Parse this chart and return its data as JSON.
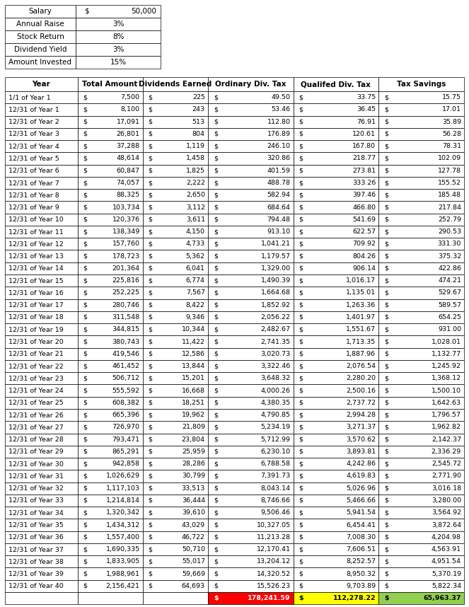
{
  "params": [
    [
      "Salary",
      "$",
      "50,000"
    ],
    [
      "Annual Raise",
      "3%",
      ""
    ],
    [
      "Stock Return",
      "8%",
      ""
    ],
    [
      "Dividend Yield",
      "3%",
      ""
    ],
    [
      "Amount Invested",
      "15%",
      ""
    ]
  ],
  "headers": [
    "Year",
    "Total Amount",
    "Dividends Earned",
    "Ordinary Div. Tax",
    "Qualifed Div. Tax",
    "Tax Savings"
  ],
  "rows": [
    [
      "1/1 of Year 1",
      "7,500",
      "225",
      "49.50",
      "33.75",
      "15.75"
    ],
    [
      "12/31 of Year 1",
      "8,100",
      "243",
      "53.46",
      "36.45",
      "17.01"
    ],
    [
      "12/31 of Year 2",
      "17,091",
      "513",
      "112.80",
      "76.91",
      "35.89"
    ],
    [
      "12/31 of Year 3",
      "26,801",
      "804",
      "176.89",
      "120.61",
      "56.28"
    ],
    [
      "12/31 of Year 4",
      "37,288",
      "1,119",
      "246.10",
      "167.80",
      "78.31"
    ],
    [
      "12/31 of Year 5",
      "48,614",
      "1,458",
      "320.86",
      "218.77",
      "102.09"
    ],
    [
      "12/31 of Year 6",
      "60,847",
      "1,825",
      "401.59",
      "273.81",
      "127.78"
    ],
    [
      "12/31 of Year 7",
      "74,057",
      "2,222",
      "488.78",
      "333.26",
      "155.52"
    ],
    [
      "12/31 of Year 8",
      "88,325",
      "2,650",
      "582.94",
      "397.46",
      "185.48"
    ],
    [
      "12/31 of Year 9",
      "103,734",
      "3,112",
      "684.64",
      "466.80",
      "217.84"
    ],
    [
      "12/31 of Year 10",
      "120,376",
      "3,611",
      "794.48",
      "541.69",
      "252.79"
    ],
    [
      "12/31 of Year 11",
      "138,349",
      "4,150",
      "913.10",
      "622.57",
      "290.53"
    ],
    [
      "12/31 of Year 12",
      "157,760",
      "4,733",
      "1,041.21",
      "709.92",
      "331.30"
    ],
    [
      "12/31 of Year 13",
      "178,723",
      "5,362",
      "1,179.57",
      "804.26",
      "375.32"
    ],
    [
      "12/31 of Year 14",
      "201,364",
      "6,041",
      "1,329.00",
      "906.14",
      "422.86"
    ],
    [
      "12/31 of Year 15",
      "225,816",
      "6,774",
      "1,490.39",
      "1,016.17",
      "474.21"
    ],
    [
      "12/31 of Year 16",
      "252,225",
      "7,567",
      "1,664.68",
      "1,135.01",
      "529.67"
    ],
    [
      "12/31 of Year 17",
      "280,746",
      "8,422",
      "1,852.92",
      "1,263.36",
      "589.57"
    ],
    [
      "12/31 of Year 18",
      "311,548",
      "9,346",
      "2,056.22",
      "1,401.97",
      "654.25"
    ],
    [
      "12/31 of Year 19",
      "344,815",
      "10,344",
      "2,482.67",
      "1,551.67",
      "931.00"
    ],
    [
      "12/31 of Year 20",
      "380,743",
      "11,422",
      "2,741.35",
      "1,713.35",
      "1,028.01"
    ],
    [
      "12/31 of Year 21",
      "419,546",
      "12,586",
      "3,020.73",
      "1,887.96",
      "1,132.77"
    ],
    [
      "12/31 of Year 22",
      "461,452",
      "13,844",
      "3,322.46",
      "2,076.54",
      "1,245.92"
    ],
    [
      "12/31 of Year 23",
      "506,712",
      "15,201",
      "3,648.32",
      "2,280.20",
      "1,368.12"
    ],
    [
      "12/31 of Year 24",
      "555,592",
      "16,668",
      "4,000.26",
      "2,500.16",
      "1,500.10"
    ],
    [
      "12/31 of Year 25",
      "608,382",
      "18,251",
      "4,380.35",
      "2,737.72",
      "1,642.63"
    ],
    [
      "12/31 of Year 26",
      "665,396",
      "19,962",
      "4,790.85",
      "2,994.28",
      "1,796.57"
    ],
    [
      "12/31 of Year 27",
      "726,970",
      "21,809",
      "5,234.19",
      "3,271.37",
      "1,962.82"
    ],
    [
      "12/31 of Year 28",
      "793,471",
      "23,804",
      "5,712.99",
      "3,570.62",
      "2,142.37"
    ],
    [
      "12/31 of Year 29",
      "865,291",
      "25,959",
      "6,230.10",
      "3,893.81",
      "2,336.29"
    ],
    [
      "12/31 of Year 30",
      "942,858",
      "28,286",
      "6,788.58",
      "4,242.86",
      "2,545.72"
    ],
    [
      "12/31 of Year 31",
      "1,026,629",
      "30,799",
      "7,391.73",
      "4,619.83",
      "2,771.90"
    ],
    [
      "12/31 of Year 32",
      "1,117,103",
      "33,513",
      "8,043.14",
      "5,026.96",
      "3,016.18"
    ],
    [
      "12/31 of Year 33",
      "1,214,814",
      "36,444",
      "8,746.66",
      "5,466.66",
      "3,280.00"
    ],
    [
      "12/31 of Year 34",
      "1,320,342",
      "39,610",
      "9,506.46",
      "5,941.54",
      "3,564.92"
    ],
    [
      "12/31 of Year 35",
      "1,434,312",
      "43,029",
      "10,327.05",
      "6,454.41",
      "3,872.64"
    ],
    [
      "12/31 of Year 36",
      "1,557,400",
      "46,722",
      "11,213.28",
      "7,008.30",
      "4,204.98"
    ],
    [
      "12/31 of Year 37",
      "1,690,335",
      "50,710",
      "12,170.41",
      "7,606.51",
      "4,563.91"
    ],
    [
      "12/31 of Year 38",
      "1,833,905",
      "55,017",
      "13,204.12",
      "8,252.57",
      "4,951.54"
    ],
    [
      "12/31 of Year 39",
      "1,988,961",
      "59,669",
      "14,320.52",
      "8,950.32",
      "5,370.19"
    ],
    [
      "12/31 of Year 40",
      "2,156,421",
      "64,693",
      "15,526.23",
      "9,703.89",
      "5,822.34"
    ]
  ],
  "totals": [
    "178,241.59",
    "112,278.22",
    "65,963.37"
  ],
  "total_bg_colors": [
    "#ff0000",
    "#ffff00",
    "#92d050"
  ],
  "total_text_colors": [
    "#ffffff",
    "#000000",
    "#000000"
  ],
  "font_size": 6.8,
  "header_font_size": 7.5,
  "param_font_size": 7.5
}
